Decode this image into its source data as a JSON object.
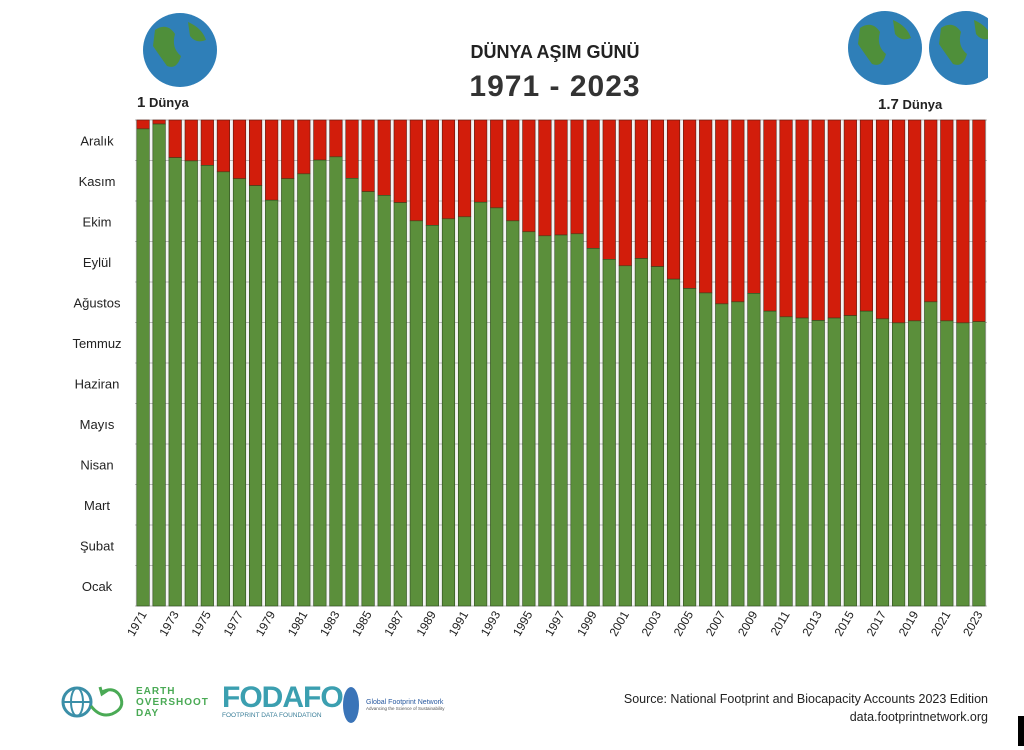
{
  "header": {
    "title": "DÜNYA AŞIM GÜNÜ",
    "subtitle": "1971 - 2023",
    "left_label_num": "1",
    "left_label_text": "Dünya",
    "right_label_num": "1.7",
    "right_label_text": "Dünya"
  },
  "footer": {
    "source_line1": "Source: National Footprint and Biocapacity Accounts 2023 Edition",
    "source_line2": "data.footprintnetwork.org",
    "logo_eod": [
      "EARTH",
      "OVERSHOOT",
      "DAY"
    ],
    "logo_fodafo": "FODAFO",
    "logo_fodafo_sub": "FOOTPRINT DATA FOUNDATION",
    "logo_gfn": "Global Footprint Network",
    "logo_gfn_sub": "Advancing the Science of Sustainability"
  },
  "colors": {
    "green": "#5b8f3b",
    "red": "#d21d0b",
    "grid": "#b9b9b9"
  },
  "chart_data": {
    "type": "bar",
    "stacked": true,
    "title": "DÜNYA AŞIM GÜNÜ",
    "subtitle": "1971 - 2023",
    "ylim": [
      0,
      12
    ],
    "y_tick_labels": [
      "Ocak",
      "Şubat",
      "Mart",
      "Nisan",
      "Mayıs",
      "Haziran",
      "Temmuz",
      "Ağustos",
      "Eylül",
      "Ekim",
      "Kasım",
      "Aralık"
    ],
    "grid": true,
    "categories": [
      1971,
      1972,
      1973,
      1974,
      1975,
      1976,
      1977,
      1978,
      1979,
      1980,
      1981,
      1982,
      1983,
      1984,
      1985,
      1986,
      1987,
      1988,
      1989,
      1990,
      1991,
      1992,
      1993,
      1994,
      1995,
      1996,
      1997,
      1998,
      1999,
      2000,
      2001,
      2002,
      2003,
      2004,
      2005,
      2006,
      2007,
      2008,
      2009,
      2010,
      2011,
      2012,
      2013,
      2014,
      2015,
      2016,
      2017,
      2018,
      2019,
      2020,
      2021,
      2022,
      2023
    ],
    "x_tick_labels": [
      "1971",
      "1973",
      "1975",
      "1977",
      "1979",
      "1981",
      "1983",
      "1985",
      "1987",
      "1989",
      "1991",
      "1993",
      "1995",
      "1997",
      "1999",
      "2001",
      "2003",
      "2005",
      "2007",
      "2009",
      "2011",
      "2013",
      "2015",
      "2017",
      "2019",
      "2021",
      "2023"
    ],
    "values": [
      11.78,
      11.9,
      11.07,
      10.99,
      10.88,
      10.72,
      10.55,
      10.38,
      10.02,
      10.55,
      10.67,
      11.01,
      11.09,
      10.56,
      10.23,
      10.14,
      9.96,
      9.51,
      9.4,
      9.56,
      9.61,
      9.97,
      9.83,
      9.51,
      9.24,
      9.14,
      9.16,
      9.19,
      8.83,
      8.56,
      8.4,
      8.58,
      8.38,
      8.07,
      7.84,
      7.73,
      7.46,
      7.51,
      7.72,
      7.28,
      7.14,
      7.11,
      7.05,
      7.11,
      7.17,
      7.28,
      7.09,
      6.99,
      7.04,
      7.51,
      7.04,
      6.99,
      7.02
    ]
  }
}
